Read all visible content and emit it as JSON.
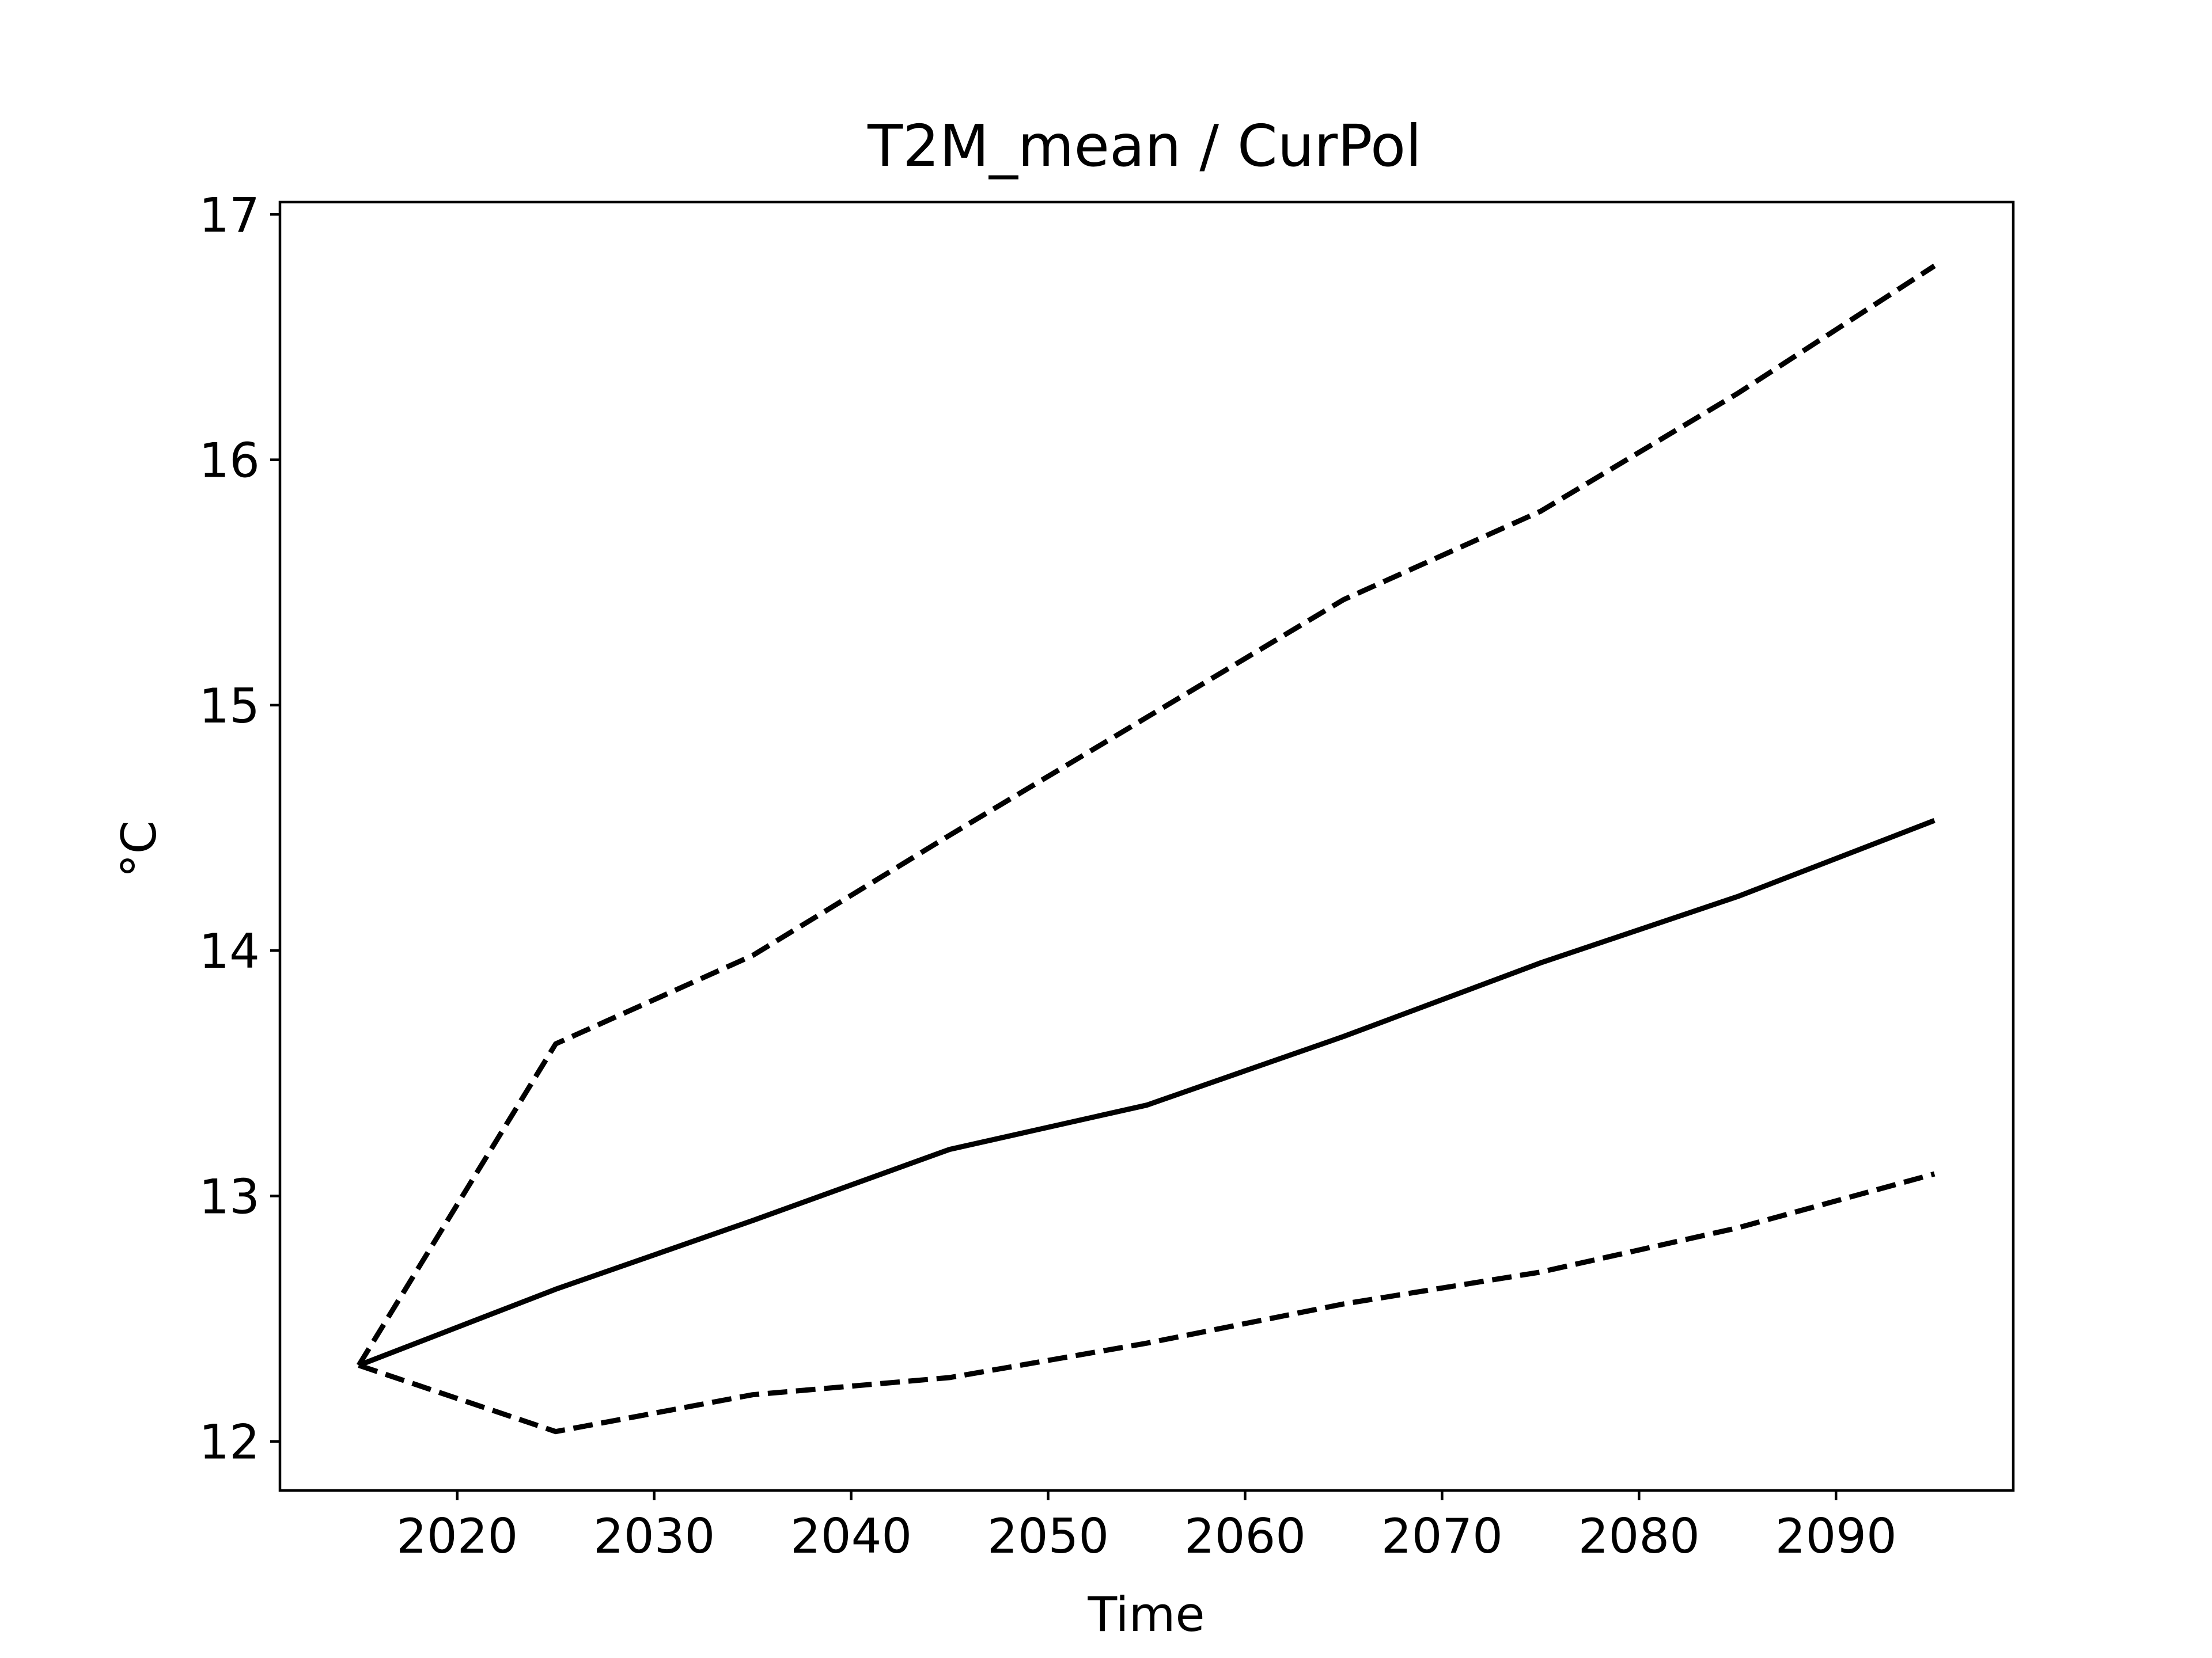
{
  "chart_data": {
    "type": "line",
    "title": "T2M_mean / CurPol",
    "xlabel": "Time",
    "ylabel": "°C",
    "xlim": [
      2011,
      2099
    ],
    "ylim": [
      11.8,
      17.05
    ],
    "xticks": [
      2020,
      2030,
      2040,
      2050,
      2060,
      2070,
      2080,
      2090
    ],
    "yticks": [
      12,
      13,
      14,
      15,
      16,
      17
    ],
    "grid": false,
    "legend": null,
    "x": [
      2015,
      2025,
      2035,
      2045,
      2055,
      2065,
      2075,
      2085,
      2095
    ],
    "series": [
      {
        "style": "solid",
        "color": "#000000",
        "values": [
          12.31,
          12.62,
          12.9,
          13.19,
          13.37,
          13.65,
          13.95,
          14.22,
          14.53
        ]
      },
      {
        "style": "dashed",
        "color": "#000000",
        "values": [
          12.31,
          13.62,
          13.98,
          14.47,
          14.95,
          15.43,
          15.79,
          16.27,
          16.79
        ]
      },
      {
        "style": "dashed",
        "color": "#000000",
        "values": [
          12.31,
          12.04,
          12.19,
          12.26,
          12.4,
          12.56,
          12.69,
          12.87,
          13.09
        ]
      }
    ]
  }
}
